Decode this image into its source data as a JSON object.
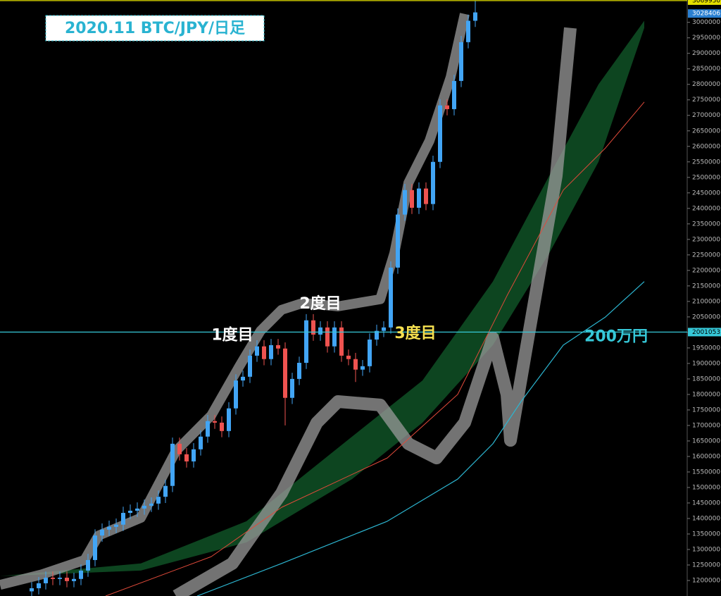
{
  "chart_data": {
    "type": "candlestick",
    "title": "2020.11 BTC/JPY/日足",
    "open": [
      1165000,
      1175000,
      1191000,
      1209000,
      1205000,
      1209000,
      1198000,
      1205000,
      1232000,
      1266000,
      1345000,
      1364000,
      1373000,
      1380000,
      1418000,
      1425000,
      1432000,
      1441000,
      1448000,
      1470000,
      1505000,
      1641000,
      1607000,
      1584000,
      1623000,
      1664000,
      1714000,
      1709000,
      1682000,
      1755000,
      1845000,
      1857000,
      1925000,
      1955000,
      1914000,
      1959000,
      1948000,
      1789000,
      1850000,
      1902000,
      2039000,
      1993000,
      2016000,
      1955000,
      2016000,
      1925000,
      1914000,
      1880000,
      1891000,
      1977000,
      2005000,
      2016000,
      2209000,
      2380000,
      2459000,
      2402000,
      2464000,
      2414000,
      2550000,
      2732000,
      2720000,
      2811000,
      2936000,
      3005000
    ],
    "high": [
      1195000,
      1211000,
      1229000,
      1229000,
      1229000,
      1229000,
      1225000,
      1252000,
      1286000,
      1365000,
      1384000,
      1393000,
      1400000,
      1438000,
      1445000,
      1452000,
      1461000,
      1468000,
      1490000,
      1525000,
      1661000,
      1661000,
      1627000,
      1643000,
      1684000,
      1734000,
      1734000,
      1729000,
      1775000,
      1865000,
      1877000,
      1945000,
      1975000,
      1975000,
      1979000,
      1979000,
      1968000,
      1870000,
      1922000,
      2059000,
      2059000,
      2036000,
      2036000,
      2036000,
      2036000,
      1945000,
      1934000,
      1911000,
      1997000,
      2025000,
      2036000,
      2229000,
      2400000,
      2479000,
      2479000,
      2484000,
      2484000,
      2570000,
      2752000,
      2752000,
      2831000,
      2956000,
      3025000,
      3070000
    ],
    "low": [
      1145000,
      1155000,
      1171000,
      1185000,
      1185000,
      1178000,
      1178000,
      1185000,
      1212000,
      1246000,
      1325000,
      1344000,
      1353000,
      1360000,
      1398000,
      1405000,
      1412000,
      1421000,
      1428000,
      1450000,
      1485000,
      1587000,
      1564000,
      1564000,
      1603000,
      1644000,
      1689000,
      1662000,
      1662000,
      1735000,
      1825000,
      1837000,
      1905000,
      1894000,
      1894000,
      1928000,
      1700000,
      1769000,
      1830000,
      1882000,
      1973000,
      1973000,
      1935000,
      1935000,
      1905000,
      1894000,
      1840000,
      1860000,
      1871000,
      1957000,
      1985000,
      1996000,
      2189000,
      2360000,
      2382000,
      2382000,
      2394000,
      2394000,
      2530000,
      2700000,
      2700000,
      2791000,
      2916000,
      2985000
    ],
    "close": [
      1175000,
      1191000,
      1209000,
      1205000,
      1209000,
      1198000,
      1205000,
      1232000,
      1266000,
      1345000,
      1364000,
      1373000,
      1380000,
      1418000,
      1425000,
      1432000,
      1441000,
      1448000,
      1470000,
      1505000,
      1641000,
      1607000,
      1584000,
      1623000,
      1664000,
      1714000,
      1709000,
      1682000,
      1755000,
      1845000,
      1857000,
      1925000,
      1955000,
      1914000,
      1959000,
      1948000,
      1789000,
      1850000,
      1902000,
      2039000,
      1993000,
      2016000,
      1955000,
      2016000,
      1925000,
      1914000,
      1880000,
      1891000,
      1977000,
      2005000,
      2016000,
      2209000,
      2380000,
      2459000,
      2402000,
      2464000,
      2414000,
      2550000,
      2732000,
      2720000,
      2811000,
      2936000,
      3005000,
      3032000
    ],
    "up_color": "#42a5f5",
    "down_color": "#ef5350",
    "xlim": [
      -4.5,
      93
    ],
    "ylim": [
      1150000,
      3072000
    ],
    "yticks": [
      1200000,
      1250000,
      1300000,
      1350000,
      1400000,
      1450000,
      1500000,
      1550000,
      1600000,
      1650000,
      1700000,
      1750000,
      1800000,
      1850000,
      1900000,
      1950000,
      2000000,
      2050000,
      2100000,
      2150000,
      2200000,
      2250000,
      2300000,
      2350000,
      2400000,
      2450000,
      2500000,
      2550000,
      2600000,
      2650000,
      2700000,
      2750000,
      2800000,
      2850000,
      2900000,
      2950000,
      3000000
    ],
    "cloud": {
      "color": "#0e4d24",
      "x": [
        -4.5,
        15.5,
        30.5,
        45.5,
        55.5,
        65.5,
        73.5,
        80.5,
        87
      ],
      "upper": [
        1214000,
        1255000,
        1391000,
        1664000,
        1845000,
        2164000,
        2505000,
        2800000,
        3005000
      ],
      "lower": [
        1214000,
        1232000,
        1323000,
        1527000,
        1709000,
        1959000,
        2255000,
        2550000,
        2982000
      ]
    },
    "lines": [
      {
        "color": "#9a9a9a",
        "width": 14,
        "x": [
          -4.5,
          1.5,
          7.5,
          9.5,
          15.5,
          20.5,
          25.5,
          29.5,
          32.5,
          35.5,
          38.5,
          43.5,
          49.5,
          51.5,
          53.5,
          56.5,
          59.5,
          61.5
        ],
        "values": [
          1186000,
          1220000,
          1266000,
          1345000,
          1402000,
          1618000,
          1732000,
          1891000,
          2005000,
          2073000,
          2095000,
          2084000,
          2107000,
          2255000,
          2482000,
          2618000,
          2823000,
          3027000
        ]
      },
      {
        "color": "#9a9a9a",
        "width": 18,
        "x": [
          20.5,
          28.5,
          35.5,
          40.5,
          43.5,
          49.5,
          53.5,
          57.5,
          61.5,
          65.5,
          67.5,
          68,
          70.5,
          74.5,
          76.5
        ],
        "values": [
          1150000,
          1255000,
          1482000,
          1709000,
          1777000,
          1766000,
          1641000,
          1595000,
          1709000,
          1982000,
          1800000,
          1652000,
          1982000,
          2505000,
          2982000
        ]
      },
      {
        "color": "#e04a3a",
        "width": 1,
        "x": [
          10.5,
          25.5,
          35.5,
          50.5,
          60.5,
          67.5,
          75.5,
          81.5,
          87
        ],
        "values": [
          1150000,
          1277000,
          1436000,
          1595000,
          1800000,
          2118000,
          2459000,
          2595000,
          2743000
        ]
      },
      {
        "color": "#2cb5d0",
        "width": 1.2,
        "x": [
          23.5,
          35.5,
          50.5,
          60.5,
          65.5,
          69.5,
          75.5,
          81.5,
          87
        ],
        "values": [
          1150000,
          1255000,
          1391000,
          1527000,
          1641000,
          1777000,
          1959000,
          2050000,
          2164000
        ]
      }
    ],
    "hlines": [
      {
        "value": 2001053,
        "color": "#36c8d8",
        "label": "2001053"
      },
      {
        "value": 3069950,
        "color": "#e5e000",
        "label": "3069950"
      }
    ],
    "last_price": {
      "value": 3028406,
      "color": "#2a7fd0",
      "label": "3028406"
    },
    "annotations": [
      {
        "text": "1度目",
        "x": 28.5,
        "value": 1990000,
        "color": "#ffffff"
      },
      {
        "text": "2度目",
        "x": 41,
        "value": 2090000,
        "color": "#ffffff"
      },
      {
        "text": "3度目",
        "x": 54.5,
        "value": 1995000,
        "color": "#f5e050"
      },
      {
        "text": "200万円",
        "x": 83,
        "value": 1985000,
        "color": "#36c8d8"
      }
    ]
  }
}
